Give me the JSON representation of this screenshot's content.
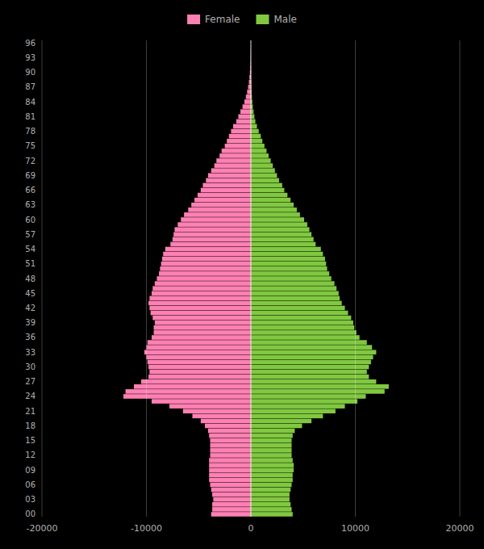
{
  "chart_data": {
    "type": "bar",
    "orientation": "horizontal",
    "categories": [
      "00",
      null,
      null,
      "03",
      null,
      null,
      "06",
      null,
      null,
      "09",
      null,
      null,
      "12",
      null,
      null,
      "15",
      null,
      null,
      "18",
      null,
      null,
      "21",
      null,
      null,
      "24",
      null,
      null,
      "27",
      null,
      null,
      "30",
      null,
      null,
      "33",
      null,
      null,
      "36",
      null,
      null,
      "39",
      null,
      null,
      "42",
      null,
      null,
      "45",
      null,
      null,
      "48",
      null,
      null,
      "51",
      null,
      null,
      "54",
      null,
      null,
      "57",
      null,
      null,
      "60",
      null,
      null,
      "63",
      null,
      null,
      "66",
      null,
      null,
      "69",
      null,
      null,
      "72",
      null,
      null,
      "75",
      null,
      null,
      "78",
      null,
      null,
      "81",
      null,
      null,
      "84",
      null,
      null,
      "87",
      null,
      null,
      "90",
      null,
      null,
      "93",
      null,
      null,
      "96"
    ],
    "series": [
      {
        "name": "Female",
        "color": "#ff80b3",
        "values": [
          -3800,
          -3700,
          -3700,
          -3600,
          -3700,
          -3800,
          -3900,
          -4000,
          -4000,
          -4000,
          -4000,
          -4000,
          -3900,
          -3900,
          -3900,
          -3900,
          -4000,
          -4100,
          -4400,
          -4800,
          -5600,
          -6500,
          -7800,
          -9500,
          -12200,
          -12000,
          -11200,
          -10500,
          -9800,
          -9700,
          -9800,
          -9900,
          -10000,
          -10200,
          -10000,
          -9900,
          -9500,
          -9300,
          -9300,
          -9200,
          -9400,
          -9600,
          -9700,
          -9800,
          -9700,
          -9500,
          -9400,
          -9200,
          -9000,
          -8800,
          -8700,
          -8600,
          -8500,
          -8400,
          -8200,
          -7700,
          -7500,
          -7400,
          -7300,
          -7000,
          -6700,
          -6400,
          -6000,
          -5700,
          -5400,
          -5100,
          -4800,
          -4600,
          -4300,
          -4100,
          -3800,
          -3500,
          -3300,
          -3000,
          -2800,
          -2500,
          -2300,
          -2100,
          -1900,
          -1700,
          -1400,
          -1200,
          -1000,
          -800,
          -620,
          -480,
          -360,
          -270,
          -190,
          -140,
          -95,
          -65,
          -45,
          -30,
          -20,
          -12,
          -6
        ]
      },
      {
        "name": "Male",
        "color": "#80c840",
        "values": [
          4000,
          3900,
          3800,
          3700,
          3700,
          3800,
          3900,
          4000,
          4000,
          4100,
          4100,
          4000,
          3900,
          3900,
          3900,
          3900,
          4000,
          4200,
          4900,
          5800,
          6900,
          8100,
          9000,
          10200,
          11000,
          12800,
          13200,
          12000,
          11300,
          11100,
          11300,
          11500,
          11700,
          12000,
          11600,
          11100,
          10400,
          10100,
          9900,
          9800,
          9600,
          9300,
          9000,
          8700,
          8500,
          8400,
          8200,
          8000,
          7700,
          7500,
          7300,
          7200,
          7100,
          6900,
          6700,
          6200,
          6000,
          5800,
          5600,
          5400,
          5100,
          4700,
          4400,
          4100,
          3800,
          3500,
          3200,
          3000,
          2700,
          2500,
          2300,
          2100,
          1900,
          1700,
          1500,
          1300,
          1100,
          950,
          750,
          580,
          430,
          340,
          260,
          190,
          140,
          100,
          72,
          50,
          35,
          23,
          16,
          10,
          7,
          4,
          3,
          2,
          1
        ]
      }
    ],
    "xlim": [
      -20000,
      20000
    ],
    "xticks": [
      -20000,
      -10000,
      0,
      10000,
      20000
    ],
    "grid": true,
    "legend": "top"
  }
}
